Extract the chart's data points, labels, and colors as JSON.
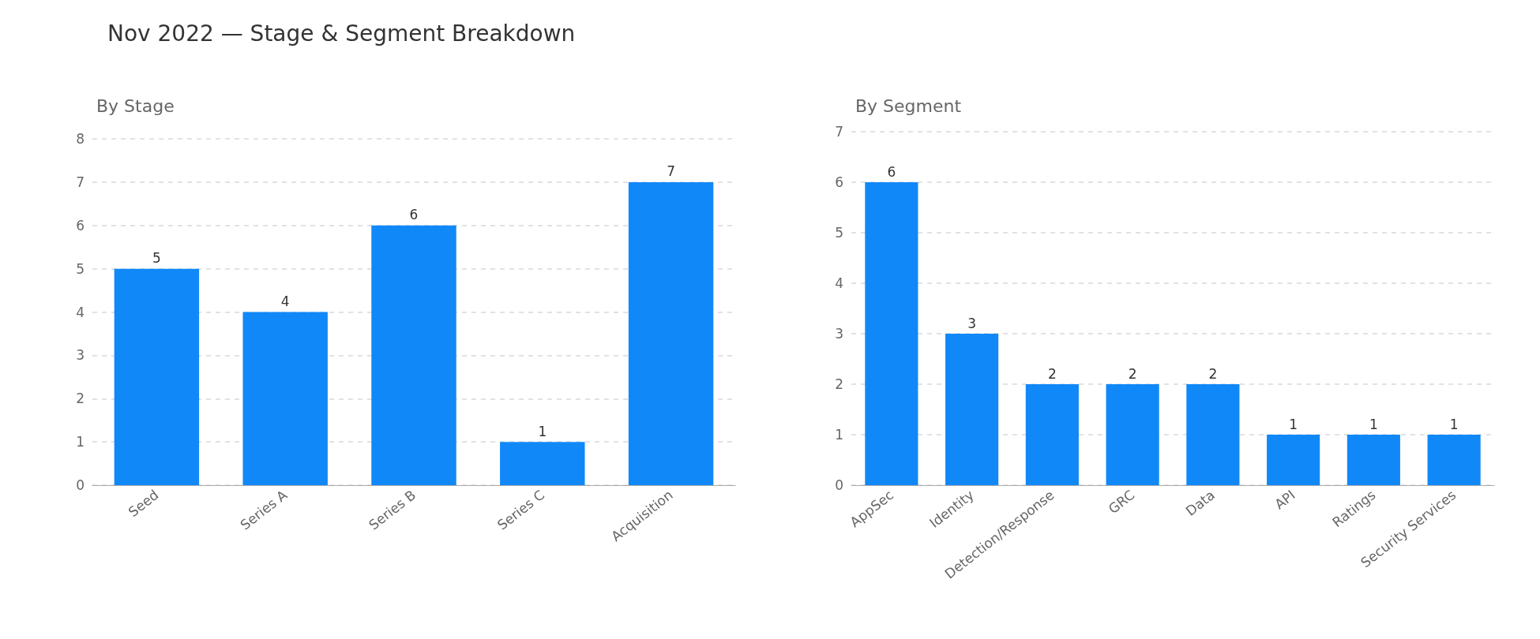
{
  "chart_data": [
    {
      "type": "bar",
      "title": "Nov 2022 — Stage & Segment Breakdown",
      "subtitle": "By Stage",
      "categories": [
        "Seed",
        "Series A",
        "Series B",
        "Series C",
        "Acquisition"
      ],
      "values": [
        5,
        4,
        6,
        1,
        7
      ],
      "color": "#1188f8",
      "ylim": [
        0,
        8
      ],
      "yticks": [
        0,
        1,
        2,
        3,
        4,
        5,
        6,
        7,
        8
      ],
      "grid": "y",
      "data_labels": true
    },
    {
      "type": "bar",
      "subtitle": "By Segment",
      "categories": [
        "AppSec",
        "Identity",
        "Detection/Response",
        "GRC",
        "Data",
        "API",
        "Ratings",
        "Security Services"
      ],
      "values": [
        6,
        3,
        2,
        2,
        2,
        1,
        1,
        1
      ],
      "color": "#1188f8",
      "ylim": [
        0,
        7
      ],
      "yticks": [
        0,
        1,
        2,
        3,
        4,
        5,
        6,
        7
      ],
      "grid": "y",
      "data_labels": true
    }
  ]
}
